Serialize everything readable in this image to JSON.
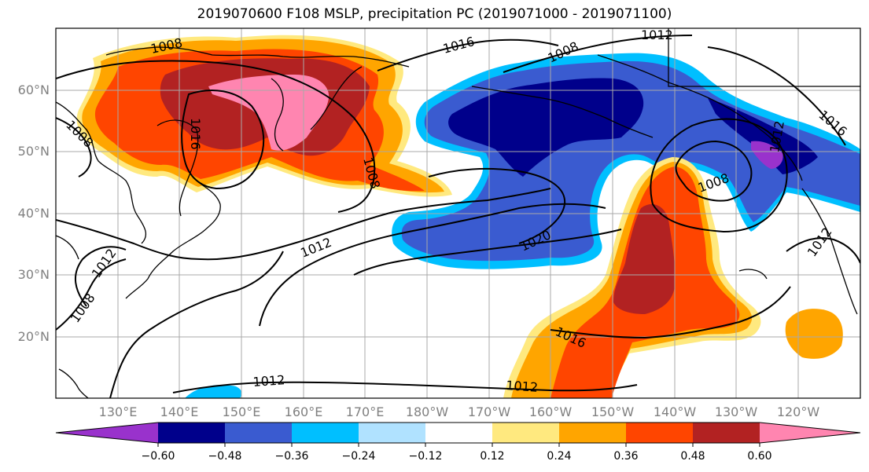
{
  "title": "2019070600 F108 MSLP, precipitation PC (2019071000 - 2019071100)",
  "lat_ticks": [
    "60°N",
    "50°N",
    "40°N",
    "30°N",
    "20°N"
  ],
  "lon_ticks": [
    "130°E",
    "140°E",
    "150°E",
    "160°E",
    "170°E",
    "180°W",
    "170°W",
    "160°W",
    "150°W",
    "140°W",
    "130°W",
    "120°W"
  ],
  "colorbar": {
    "ticks": [
      "−0.60",
      "−0.48",
      "−0.36",
      "−0.24",
      "−0.12",
      "0.12",
      "0.24",
      "0.36",
      "0.48",
      "0.60"
    ],
    "colors": [
      "#9932cc",
      "#00008b",
      "#3a5bd0",
      "#00bfff",
      "#b0e2ff",
      "#ffffff",
      "#ffe97f",
      "#ffa500",
      "#ff4500",
      "#b22222",
      "#ff85b0"
    ]
  },
  "isobar_labels": [
    {
      "text": "1008"
    },
    {
      "text": "1016"
    },
    {
      "text": "1012"
    },
    {
      "text": "1008"
    },
    {
      "text": "1008"
    },
    {
      "text": "1016"
    },
    {
      "text": "1008"
    },
    {
      "text": "1012"
    },
    {
      "text": "1020"
    },
    {
      "text": "1008"
    },
    {
      "text": "1016"
    },
    {
      "text": "1012"
    },
    {
      "text": "1012"
    },
    {
      "text": "1008"
    },
    {
      "text": "1012"
    },
    {
      "text": "1016"
    },
    {
      "text": "1012"
    },
    {
      "text": "1012"
    }
  ]
}
